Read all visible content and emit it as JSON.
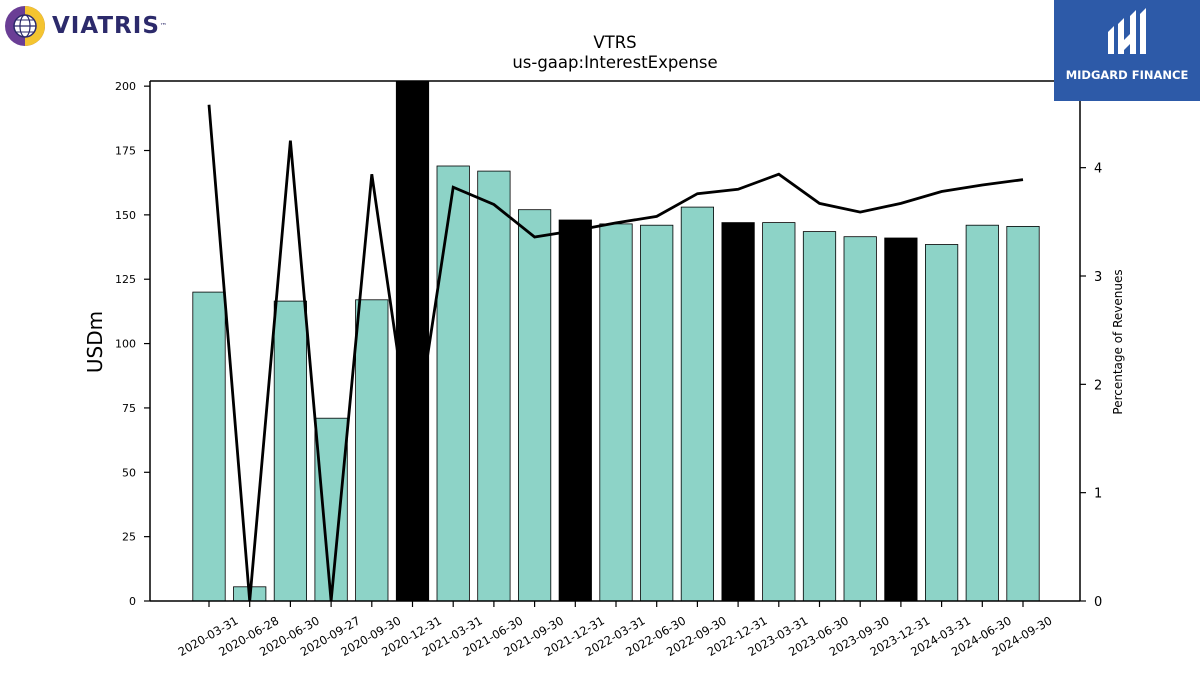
{
  "logos": {
    "left_text": "VIATRIS",
    "left_tm": "™",
    "right_text": "MIDGARD FINANCE"
  },
  "colors": {
    "bar_default": "#8dd3c7",
    "bar_highlight": "#000000",
    "line": "#000000",
    "axis": "#000000",
    "brand_blue": "#2d5aa8"
  },
  "chart_data": {
    "type": "bar",
    "title": "VTRS",
    "subtitle": "us-gaap:InterestExpense",
    "ylabel": "USDm",
    "y2label": "Percentage of Revenues",
    "ylim": [
      0,
      202
    ],
    "y2lim": [
      0,
      4.8
    ],
    "yticks": [
      0,
      25,
      50,
      75,
      100,
      125,
      150,
      175,
      200
    ],
    "y2ticks": [
      0,
      1,
      2,
      3,
      4
    ],
    "categories": [
      "2020-03-31",
      "2020-06-28",
      "2020-06-30",
      "2020-09-27",
      "2020-09-30",
      "2020-12-31",
      "2021-03-31",
      "2021-06-30",
      "2021-09-30",
      "2021-12-31",
      "2022-03-31",
      "2022-06-30",
      "2022-09-30",
      "2022-12-31",
      "2023-03-31",
      "2023-06-30",
      "2023-09-30",
      "2023-12-31",
      "2024-03-31",
      "2024-06-30",
      "2024-09-30"
    ],
    "series": [
      {
        "kind": "bar",
        "values": [
          120,
          5.5,
          116.5,
          71,
          117,
          202,
          169,
          167,
          152,
          148,
          146.5,
          146,
          153,
          147,
          147,
          143.5,
          141.5,
          141,
          138.5,
          146,
          145.5
        ],
        "highlight": [
          false,
          false,
          false,
          false,
          false,
          true,
          false,
          false,
          false,
          true,
          false,
          false,
          false,
          true,
          false,
          false,
          false,
          true,
          false,
          false,
          false
        ]
      },
      {
        "kind": "line",
        "axis": "right",
        "values": [
          4.58,
          0.0,
          4.25,
          0.0,
          3.94,
          1.35,
          3.82,
          3.66,
          3.36,
          3.42,
          3.49,
          3.55,
          3.76,
          3.8,
          3.94,
          3.67,
          3.59,
          3.67,
          3.78,
          3.84,
          3.89
        ]
      }
    ],
    "grid": false,
    "legend": "none"
  }
}
